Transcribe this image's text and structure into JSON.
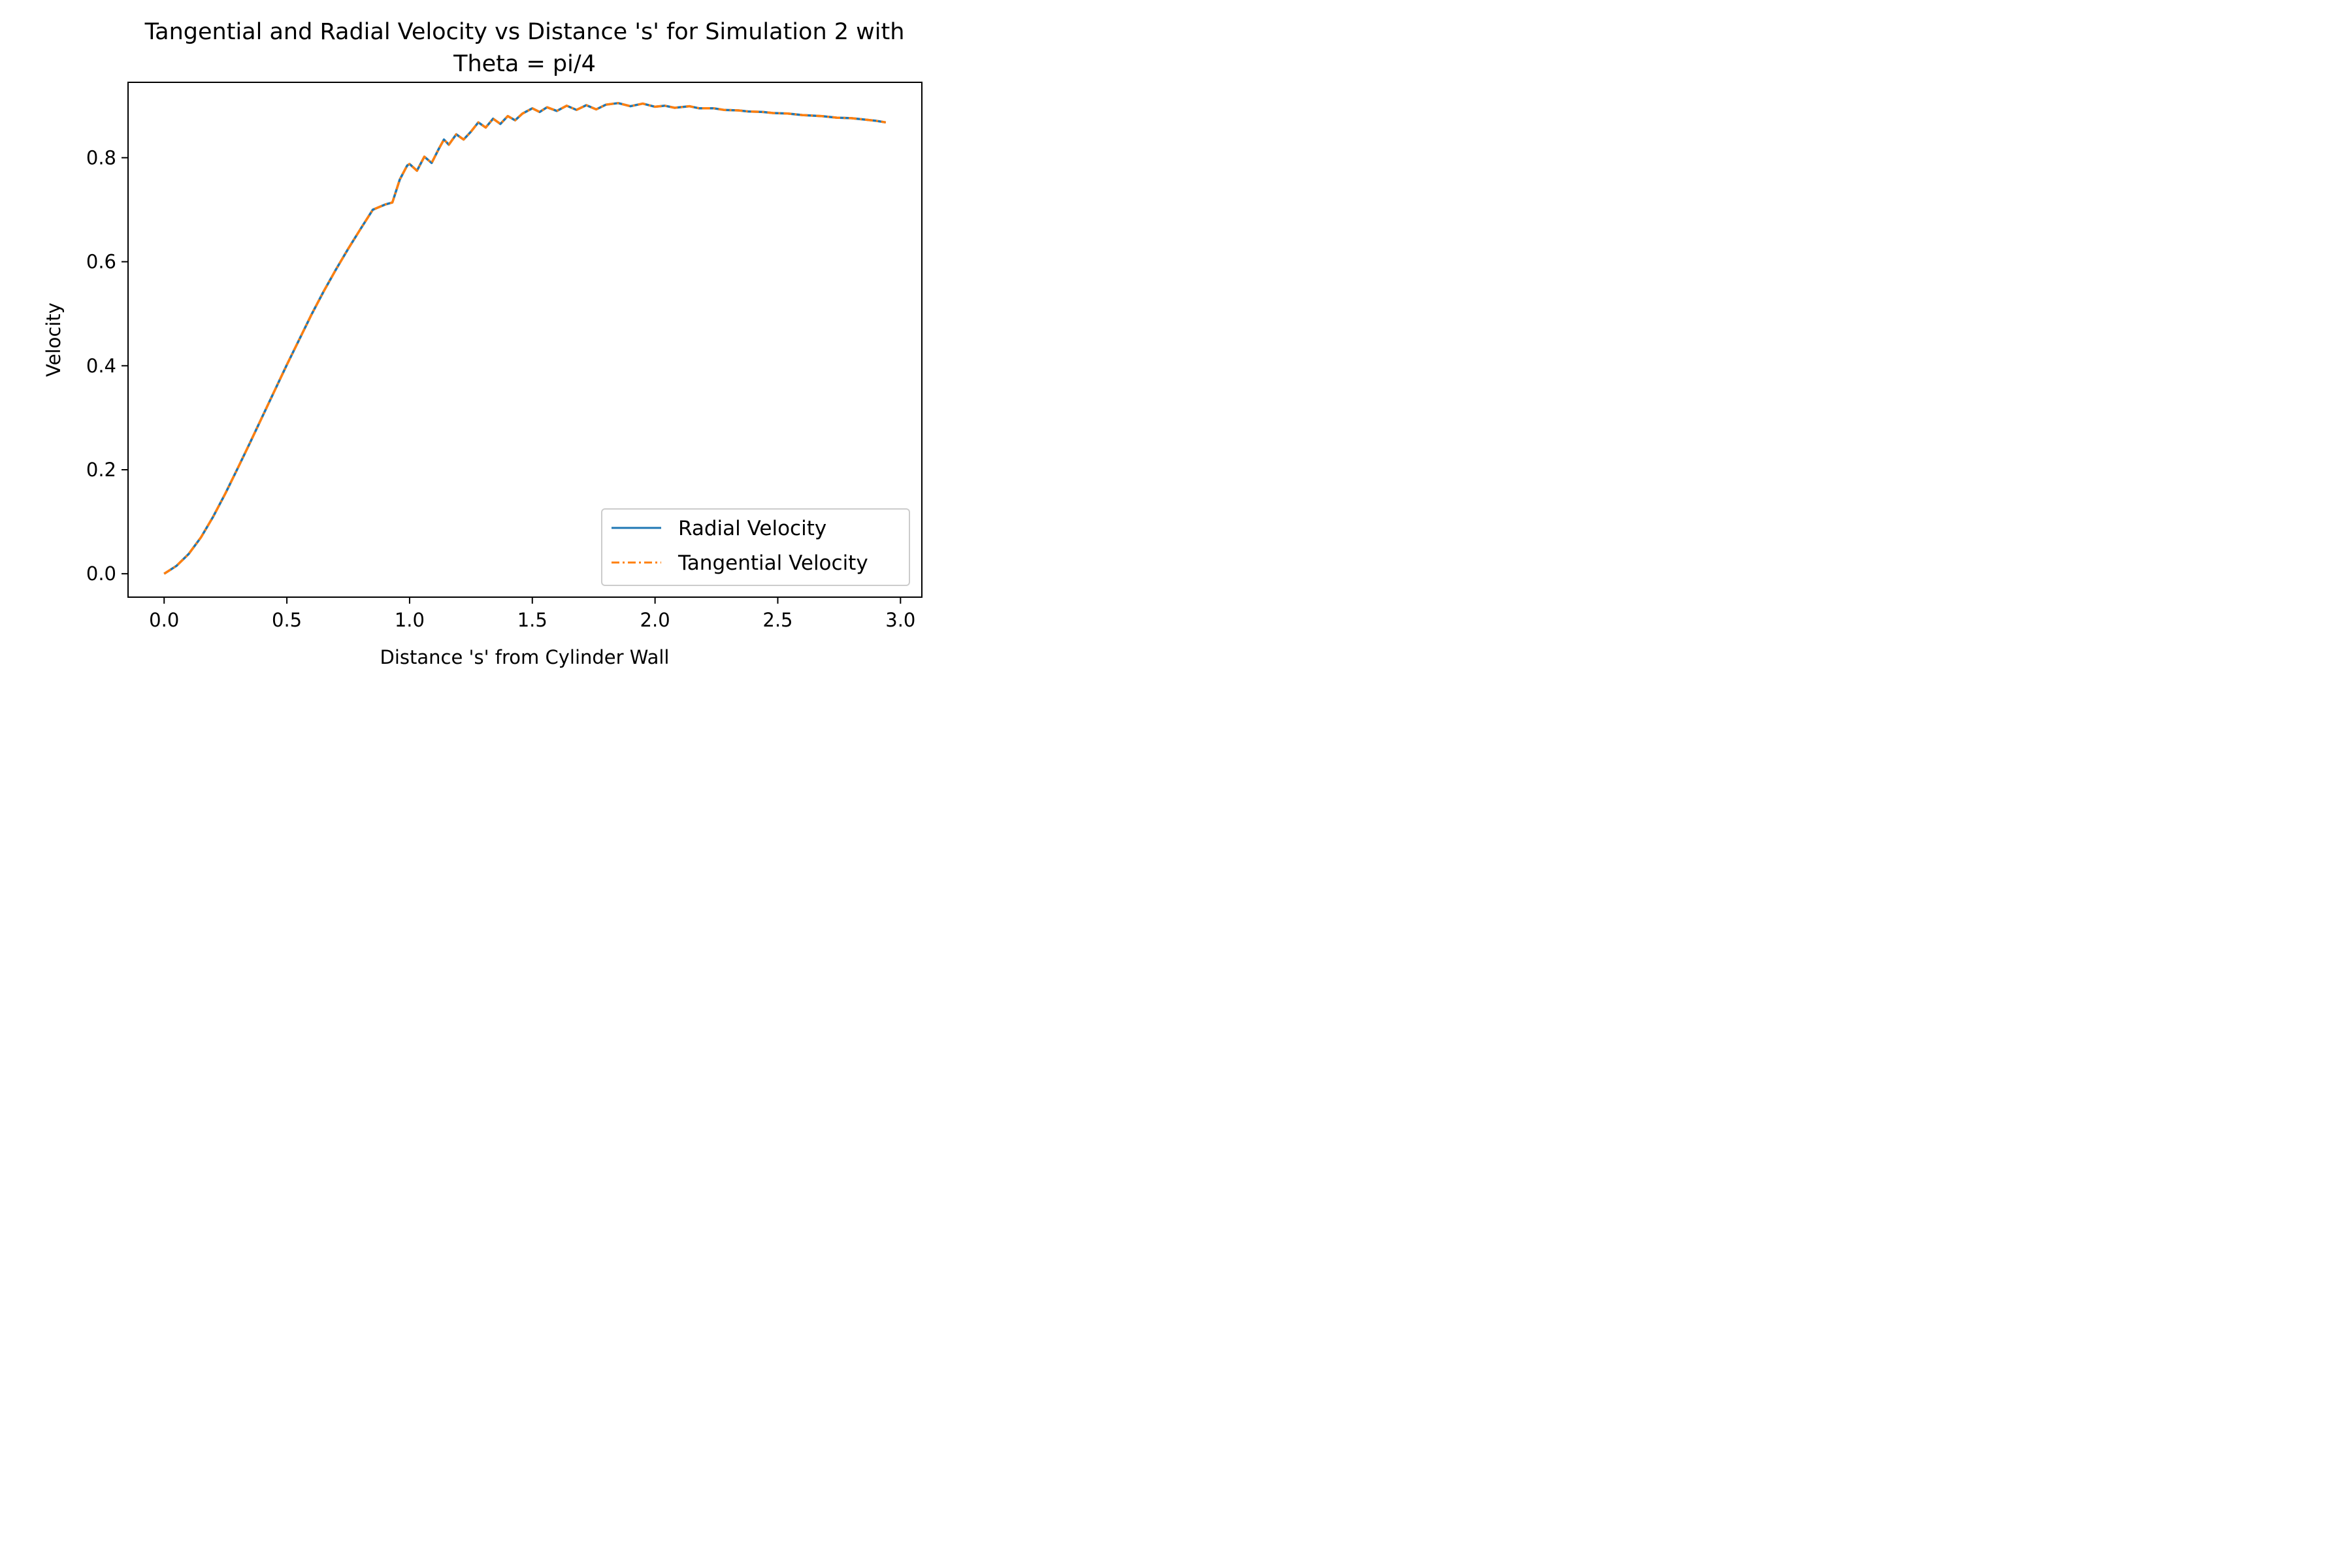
{
  "chart_data": {
    "type": "line",
    "title_line1": "Tangential and Radial Velocity vs Distance 's' for Simulation 2 with",
    "title_line2": "Theta = pi/4",
    "xlabel": "Distance 's' from Cylinder Wall",
    "ylabel": "Velocity",
    "xlim": [
      -0.147,
      3.087
    ],
    "ylim": [
      -0.045,
      0.945
    ],
    "xticks": [
      0.0,
      0.5,
      1.0,
      1.5,
      2.0,
      2.5,
      3.0
    ],
    "xtick_labels": [
      "0.0",
      "0.5",
      "1.0",
      "1.5",
      "2.0",
      "2.5",
      "3.0"
    ],
    "yticks": [
      0.0,
      0.2,
      0.4,
      0.6,
      0.8
    ],
    "ytick_labels": [
      "0.0",
      "0.2",
      "0.4",
      "0.6",
      "0.8"
    ],
    "grid": false,
    "legend_position": "lower-right",
    "series": [
      {
        "name": "Radial Velocity",
        "color": "#1f77b4",
        "style": "solid",
        "x": [
          0.0,
          0.05,
          0.1,
          0.15,
          0.2,
          0.25,
          0.3,
          0.35,
          0.4,
          0.45,
          0.5,
          0.55,
          0.6,
          0.65,
          0.7,
          0.75,
          0.8,
          0.85,
          0.9,
          0.93,
          0.96,
          0.99,
          1.0,
          1.03,
          1.06,
          1.09,
          1.12,
          1.14,
          1.16,
          1.19,
          1.22,
          1.25,
          1.28,
          1.31,
          1.34,
          1.37,
          1.4,
          1.43,
          1.46,
          1.5,
          1.53,
          1.56,
          1.6,
          1.64,
          1.68,
          1.72,
          1.76,
          1.8,
          1.85,
          1.9,
          1.95,
          2.0,
          2.04,
          2.08,
          2.14,
          2.18,
          2.24,
          2.28,
          2.34,
          2.38,
          2.44,
          2.48,
          2.54,
          2.6,
          2.68,
          2.74,
          2.8,
          2.86,
          2.9,
          2.94
        ],
        "values": [
          0.0,
          0.015,
          0.038,
          0.07,
          0.11,
          0.155,
          0.203,
          0.252,
          0.302,
          0.352,
          0.402,
          0.45,
          0.498,
          0.543,
          0.585,
          0.625,
          0.663,
          0.7,
          0.71,
          0.714,
          0.758,
          0.785,
          0.788,
          0.775,
          0.802,
          0.79,
          0.818,
          0.835,
          0.825,
          0.845,
          0.835,
          0.85,
          0.868,
          0.858,
          0.875,
          0.865,
          0.88,
          0.872,
          0.885,
          0.895,
          0.888,
          0.897,
          0.89,
          0.9,
          0.892,
          0.901,
          0.893,
          0.902,
          0.905,
          0.899,
          0.904,
          0.898,
          0.9,
          0.896,
          0.899,
          0.895,
          0.895,
          0.892,
          0.891,
          0.889,
          0.888,
          0.886,
          0.885,
          0.882,
          0.88,
          0.877,
          0.876,
          0.873,
          0.871,
          0.868
        ]
      },
      {
        "name": "Tangential Velocity",
        "color": "#ff7f0e",
        "style": "dashdot",
        "x": [
          0.0,
          0.05,
          0.1,
          0.15,
          0.2,
          0.25,
          0.3,
          0.35,
          0.4,
          0.45,
          0.5,
          0.55,
          0.6,
          0.65,
          0.7,
          0.75,
          0.8,
          0.85,
          0.9,
          0.93,
          0.96,
          0.99,
          1.0,
          1.03,
          1.06,
          1.09,
          1.12,
          1.14,
          1.16,
          1.19,
          1.22,
          1.25,
          1.28,
          1.31,
          1.34,
          1.37,
          1.4,
          1.43,
          1.46,
          1.5,
          1.53,
          1.56,
          1.6,
          1.64,
          1.68,
          1.72,
          1.76,
          1.8,
          1.85,
          1.9,
          1.95,
          2.0,
          2.04,
          2.08,
          2.14,
          2.18,
          2.24,
          2.28,
          2.34,
          2.38,
          2.44,
          2.48,
          2.54,
          2.6,
          2.68,
          2.74,
          2.8,
          2.86,
          2.9,
          2.94
        ],
        "values": [
          0.0,
          0.015,
          0.038,
          0.07,
          0.11,
          0.155,
          0.203,
          0.252,
          0.302,
          0.352,
          0.402,
          0.45,
          0.498,
          0.543,
          0.585,
          0.625,
          0.663,
          0.7,
          0.71,
          0.714,
          0.758,
          0.785,
          0.788,
          0.775,
          0.802,
          0.79,
          0.818,
          0.835,
          0.825,
          0.845,
          0.835,
          0.85,
          0.868,
          0.858,
          0.875,
          0.865,
          0.88,
          0.872,
          0.885,
          0.895,
          0.888,
          0.897,
          0.89,
          0.9,
          0.892,
          0.901,
          0.893,
          0.902,
          0.905,
          0.899,
          0.904,
          0.898,
          0.9,
          0.896,
          0.899,
          0.895,
          0.895,
          0.892,
          0.891,
          0.889,
          0.888,
          0.886,
          0.885,
          0.882,
          0.88,
          0.877,
          0.876,
          0.873,
          0.871,
          0.868
        ]
      }
    ]
  }
}
